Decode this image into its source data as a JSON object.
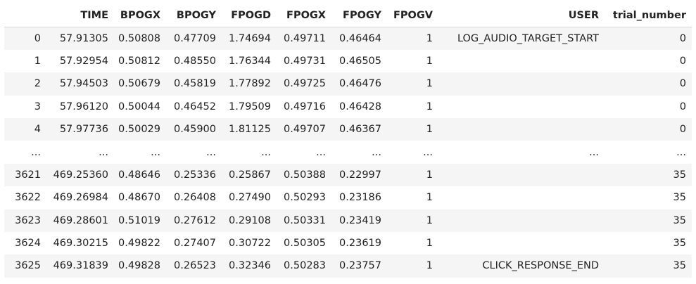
{
  "columns": [
    "",
    "TIME",
    "BPOGX",
    "BPOGY",
    "FPOGD",
    "FPOGX",
    "FPOGY",
    "FPOGV",
    "USER",
    "trial_number"
  ],
  "rows": [
    [
      "0",
      "57.91305",
      "0.50808",
      "0.47709",
      "1.74694",
      "0.49711",
      "0.46464",
      "1",
      "LOG_AUDIO_TARGET_START",
      "0"
    ],
    [
      "1",
      "57.92954",
      "0.50812",
      "0.48550",
      "1.76344",
      "0.49731",
      "0.46505",
      "1",
      "",
      "0"
    ],
    [
      "2",
      "57.94503",
      "0.50679",
      "0.45819",
      "1.77892",
      "0.49725",
      "0.46476",
      "1",
      "",
      "0"
    ],
    [
      "3",
      "57.96120",
      "0.50044",
      "0.46452",
      "1.79509",
      "0.49716",
      "0.46428",
      "1",
      "",
      "0"
    ],
    [
      "4",
      "57.97736",
      "0.50029",
      "0.45900",
      "1.81125",
      "0.49707",
      "0.46367",
      "1",
      "",
      "0"
    ],
    [
      "...",
      "...",
      "...",
      "...",
      "...",
      "...",
      "...",
      "...",
      "...",
      "..."
    ],
    [
      "3621",
      "469.25360",
      "0.48646",
      "0.25336",
      "0.25867",
      "0.50388",
      "0.22997",
      "1",
      "",
      "35"
    ],
    [
      "3622",
      "469.26984",
      "0.48670",
      "0.26408",
      "0.27490",
      "0.50293",
      "0.23186",
      "1",
      "",
      "35"
    ],
    [
      "3623",
      "469.28601",
      "0.51019",
      "0.27612",
      "0.29108",
      "0.50331",
      "0.23419",
      "1",
      "",
      "35"
    ],
    [
      "3624",
      "469.30215",
      "0.49822",
      "0.27407",
      "0.30722",
      "0.50305",
      "0.23619",
      "1",
      "",
      "35"
    ],
    [
      "3625",
      "469.31839",
      "0.49828",
      "0.26523",
      "0.32346",
      "0.50283",
      "0.23757",
      "1",
      "CLICK_RESPONSE_END",
      "35"
    ]
  ]
}
